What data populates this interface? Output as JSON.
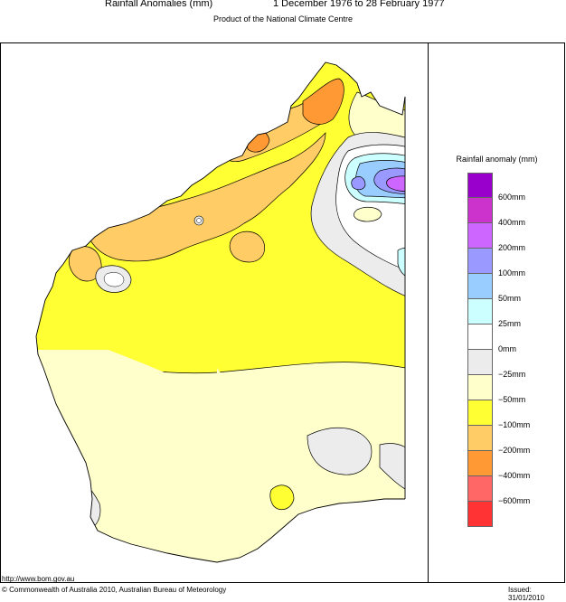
{
  "header": {
    "title_left": "Rainfall Anomalies (mm)",
    "title_right": "1 December 1976 to 28 February 1977",
    "subtitle": "Product of the National Climate Centre"
  },
  "legend": {
    "title": "Rainfall anomaly (mm)",
    "swatches": [
      {
        "color": "#9900cc"
      },
      {
        "color": "#cc33cc"
      },
      {
        "color": "#cc66ff"
      },
      {
        "color": "#9999ff"
      },
      {
        "color": "#99ccff"
      },
      {
        "color": "#ccffff"
      },
      {
        "color": "#ffffff"
      },
      {
        "color": "#ececec"
      },
      {
        "color": "#ffffcc"
      },
      {
        "color": "#ffff33"
      },
      {
        "color": "#ffcc66"
      },
      {
        "color": "#ff9933"
      },
      {
        "color": "#ff6666"
      },
      {
        "color": "#ff3333"
      }
    ],
    "labels": [
      "600mm",
      "400mm",
      "200mm",
      "100mm",
      "50mm",
      "25mm",
      "0mm",
      "−25mm",
      "−50mm",
      "−100mm",
      "−200mm",
      "−400mm",
      "−600mm"
    ]
  },
  "footer": {
    "url": "http://www.bom.gov.au",
    "copyright": "© Commonwealth of Australia 2010, Australian Bureau of Meteorology",
    "issued": "Issued: 31/01/2010"
  }
}
